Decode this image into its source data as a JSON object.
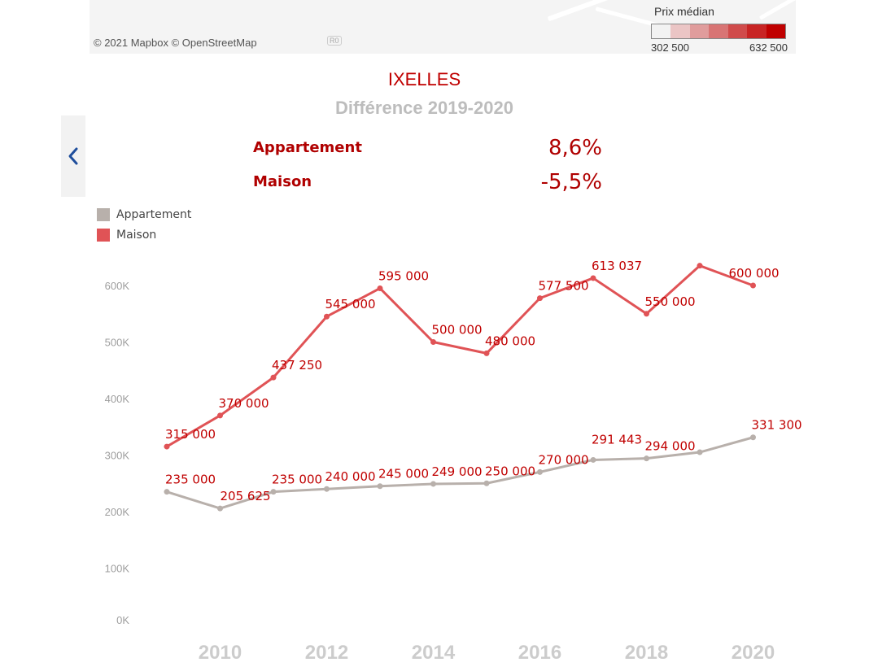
{
  "map": {
    "attribution": "© 2021 Mapbox  © OpenStreetMap",
    "road_marker": "R0",
    "legend": {
      "title": "Prix médian",
      "min_label": "302 500",
      "max_label": "632 500",
      "colors": [
        "#f2f2f2",
        "#ebc5c5",
        "#e09c9c",
        "#d87474",
        "#d04b4b",
        "#c82424",
        "#c00000"
      ]
    }
  },
  "header": {
    "city": "IXELLES",
    "subtitle": "Différence 2019-2020"
  },
  "differences": [
    {
      "label": "Appartement",
      "value": "8,6%"
    },
    {
      "label": "Maison",
      "value": "-5,5%"
    }
  ],
  "icons": {
    "back": "chevron-left-icon"
  },
  "colors": {
    "maison": "#e05356",
    "appartement": "#b8b0ab",
    "label": "#c00000",
    "axis": "#9e9e9e",
    "year_label": "#cccccc"
  },
  "chart_data": {
    "type": "line",
    "x": [
      2009,
      2010,
      2011,
      2012,
      2013,
      2014,
      2015,
      2016,
      2017,
      2018,
      2019,
      2020
    ],
    "x_tick_labels": [
      "2010",
      "2012",
      "2014",
      "2016",
      "2018",
      "2020"
    ],
    "x_tick_values": [
      2010,
      2012,
      2014,
      2016,
      2018,
      2020
    ],
    "y_tick_labels": [
      "0K",
      "100K",
      "200K",
      "300K",
      "400K",
      "500K",
      "600K"
    ],
    "ylim": [
      0,
      600000
    ],
    "grid": false,
    "legend_position": "top-left",
    "series": [
      {
        "name": "Appartement",
        "values": [
          235000,
          205625,
          235000,
          240000,
          245000,
          249000,
          250000,
          270000,
          291443,
          294000,
          305000,
          331300
        ],
        "labels": [
          "235 000",
          "205 625",
          "235 000",
          "240 000",
          "245 000",
          "249 000",
          "250 000",
          "270 000",
          "291 443",
          "294 000",
          "",
          "331 300"
        ]
      },
      {
        "name": "Maison",
        "values": [
          315000,
          370000,
          437250,
          545000,
          595000,
          500000,
          480000,
          577500,
          613037,
          550000,
          635000,
          600000
        ],
        "labels": [
          "315 000",
          "370 000",
          "437 250",
          "545 000",
          "595 000",
          "500 000",
          "480 000",
          "577 500",
          "613 037",
          "550 000",
          "",
          "600 000"
        ]
      }
    ]
  }
}
